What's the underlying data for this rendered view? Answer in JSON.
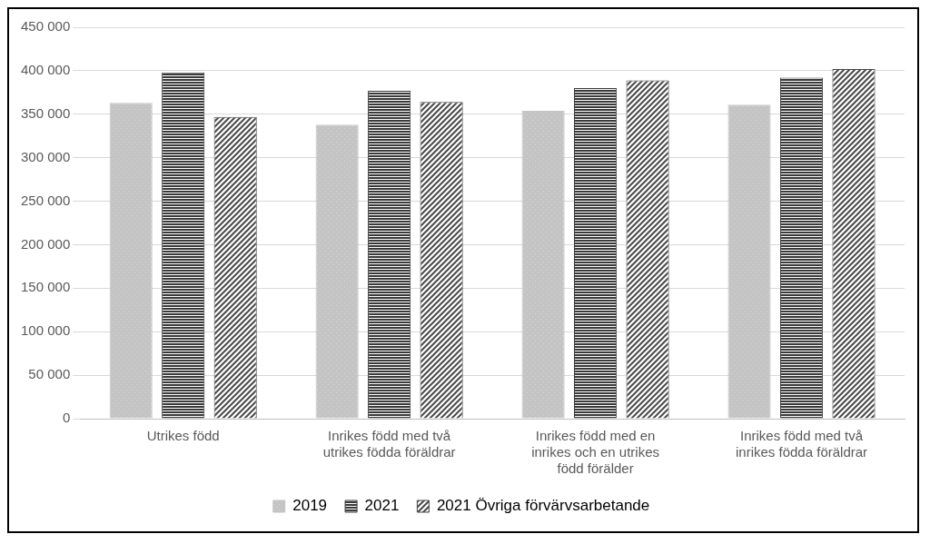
{
  "chart_data": {
    "type": "bar",
    "categories": [
      "Utrikes född",
      "Inrikes född med två utrikes födda föräldrar",
      "Inrikes född med en inrikes och en utrikes född förälder",
      "Inrikes född med två inrikes födda föräldrar"
    ],
    "series": [
      {
        "name": "2019",
        "color": "#c4c4c4",
        "values": [
          363000,
          338000,
          354000,
          361000
        ]
      },
      {
        "name": "2021",
        "color": "#3a3a3a",
        "values": [
          398000,
          377000,
          380000,
          392000
        ]
      },
      {
        "name": "2021 Övriga förvärvsarbetande",
        "color": "#4a4a4a",
        "values": [
          347000,
          364000,
          389000,
          402000
        ]
      }
    ],
    "ylim": [
      0,
      450000
    ],
    "yticks": [
      {
        "value": 0,
        "label": "0"
      },
      {
        "value": 50000,
        "label": "50 000"
      },
      {
        "value": 100000,
        "label": "100 000"
      },
      {
        "value": 150000,
        "label": "150 000"
      },
      {
        "value": 200000,
        "label": "200 000"
      },
      {
        "value": 250000,
        "label": "250 000"
      },
      {
        "value": 300000,
        "label": "300 000"
      },
      {
        "value": 350000,
        "label": "350 000"
      },
      {
        "value": 400000,
        "label": "400 000"
      },
      {
        "value": 450000,
        "label": "450 000"
      }
    ],
    "grid": true,
    "legend": "bottom"
  }
}
